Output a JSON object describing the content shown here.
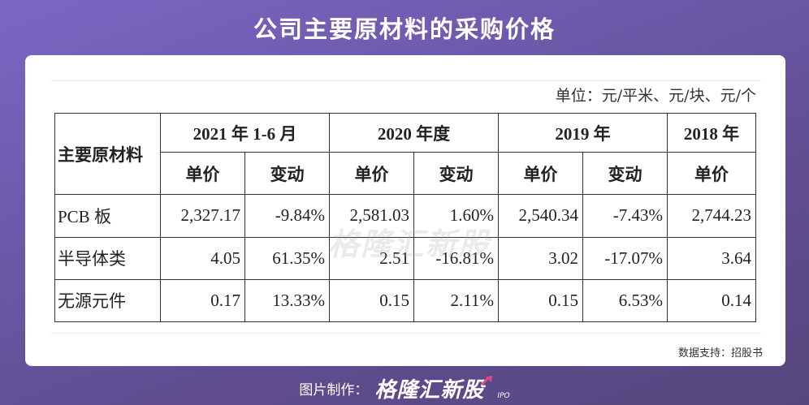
{
  "title": "公司主要原材料的采购价格",
  "unit_note": "单位：元/平米、元/块、元/个",
  "table": {
    "row_header": "主要原材料",
    "periods": [
      "2021 年 1-6 月",
      "2020 年度",
      "2019 年",
      "2018 年"
    ],
    "sub_headers": {
      "price": "单价",
      "change": "变动"
    },
    "rows": [
      {
        "label": "PCB 板",
        "values": [
          "2,327.17",
          "-9.84%",
          "2,581.03",
          "1.60%",
          "2,540.34",
          "-7.43%",
          "2,744.23"
        ]
      },
      {
        "label": "半导体类",
        "values": [
          "4.05",
          "61.35%",
          "2.51",
          "-16.81%",
          "3.02",
          "-17.07%",
          "3.64"
        ]
      },
      {
        "label": "无源元件",
        "values": [
          "0.17",
          "13.33%",
          "0.15",
          "2.11%",
          "0.15",
          "6.53%",
          "0.14"
        ]
      }
    ]
  },
  "watermark": "格隆汇新股",
  "source": "数据支持：招股书",
  "footer": {
    "credit_label": "图片制作：",
    "brand": "格隆汇新股",
    "brand_sub": "IPO"
  },
  "icons": {
    "brand_arrow": "trend-up-arrow-icon"
  },
  "colors": {
    "background": "#6b5aa9",
    "card": "#ffffff",
    "brand_accent": "#e0458a"
  }
}
